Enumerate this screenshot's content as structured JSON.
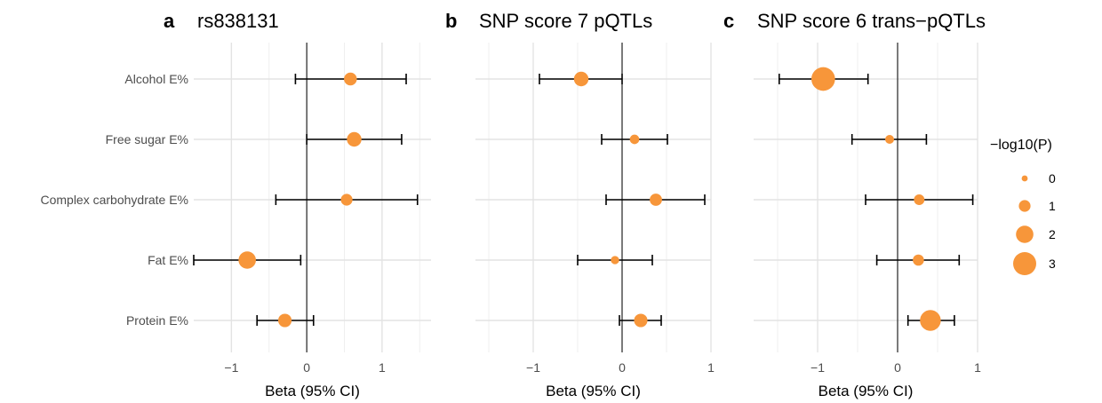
{
  "chart_data": [
    {
      "type": "scatter",
      "letter": "a",
      "title": "rs838131",
      "xlabel": "Beta (95% CI)",
      "categories": [
        "Alcohol E%",
        "Free sugar E%",
        "Complex carbohydrate E%",
        "Fat E%",
        "Protein E%"
      ],
      "xlim": [
        -1.5,
        1.65
      ],
      "xticks": [
        -1,
        0,
        1
      ],
      "xtick_labels": [
        "−1",
        "0",
        "1"
      ],
      "beta": [
        0.58,
        0.63,
        0.53,
        -0.79,
        -0.29
      ],
      "lower": [
        -0.15,
        0.0,
        -0.41,
        -1.5,
        -0.66
      ],
      "upper": [
        1.32,
        1.26,
        1.47,
        -0.08,
        0.09
      ],
      "neglog10p": [
        1.2,
        1.5,
        1.0,
        2.0,
        1.3
      ]
    },
    {
      "type": "scatter",
      "letter": "b",
      "title": "SNP score 7 pQTLs",
      "xlabel": "Beta (95% CI)",
      "categories": [
        "Alcohol E%",
        "Free sugar E%",
        "Complex carbohydrate E%",
        "Fat E%",
        "Protein E%"
      ],
      "xlim": [
        -1.65,
        1.0
      ],
      "xticks": [
        -1,
        0,
        1
      ],
      "xtick_labels": [
        "−1",
        "0",
        "1"
      ],
      "beta": [
        -0.46,
        0.14,
        0.38,
        -0.08,
        0.21
      ],
      "lower": [
        -0.93,
        -0.23,
        -0.18,
        -0.5,
        -0.03
      ],
      "upper": [
        0.0,
        0.51,
        0.93,
        0.34,
        0.44
      ],
      "neglog10p": [
        1.5,
        0.6,
        1.1,
        0.4,
        1.3
      ]
    },
    {
      "type": "scatter",
      "letter": "c",
      "title": "SNP score 6 trans−pQTLs",
      "xlabel": "Beta (95% CI)",
      "categories": [
        "Alcohol E%",
        "Free sugar E%",
        "Complex carbohydrate E%",
        "Fat E%",
        "Protein E%"
      ],
      "xlim": [
        -1.8,
        1.0
      ],
      "xticks": [
        -1,
        0,
        1
      ],
      "xtick_labels": [
        "−1",
        "0",
        "1"
      ],
      "beta": [
        -0.93,
        -0.1,
        0.27,
        0.26,
        0.41
      ],
      "lower": [
        -1.48,
        -0.57,
        -0.4,
        -0.26,
        0.13
      ],
      "upper": [
        -0.37,
        0.36,
        0.94,
        0.77,
        0.71
      ],
      "neglog10p": [
        3.1,
        0.5,
        0.8,
        0.9,
        2.6
      ]
    }
  ],
  "legend": {
    "title": "−log10(P)",
    "entries": [
      {
        "label": "0",
        "value": 0
      },
      {
        "label": "1",
        "value": 1
      },
      {
        "label": "2",
        "value": 2
      },
      {
        "label": "3",
        "value": 3
      }
    ],
    "placement": "right"
  },
  "colors": {
    "point": "#f7963a",
    "errorbar": "#000000",
    "zero_line": "#000000",
    "grid": "#e3e3e3"
  },
  "grid": true
}
